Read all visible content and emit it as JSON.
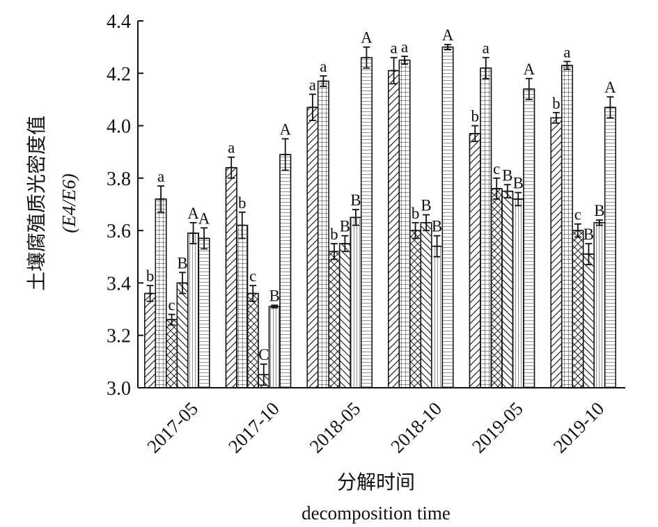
{
  "chart_data": {
    "type": "bar",
    "categories": [
      "2017-05",
      "2017-10",
      "2018-05",
      "2018-10",
      "2019-05",
      "2019-10"
    ],
    "ylim": [
      3.0,
      4.4
    ],
    "yticks": [
      "3.0",
      "3.2",
      "3.4",
      "3.6",
      "3.8",
      "4.0",
      "4.2",
      "4.4"
    ],
    "ylabel_cn": "土壤腐殖质光密度值",
    "ylabel_formula": "(E4/E6)",
    "xlabel_cn": "分解时间",
    "xlabel_en": "decomposition time",
    "grid": false,
    "series": [
      {
        "pattern": "diagonal",
        "values": [
          3.36,
          3.84,
          4.07,
          4.21,
          3.97,
          4.03
        ],
        "errors": [
          0.03,
          0.04,
          0.05,
          0.05,
          0.03,
          0.02
        ],
        "labels": [
          "b",
          "a",
          "a",
          "a",
          "b",
          "b"
        ]
      },
      {
        "pattern": "grid",
        "values": [
          3.72,
          3.62,
          4.17,
          4.25,
          4.22,
          4.23
        ],
        "errors": [
          0.05,
          0.05,
          0.02,
          0.015,
          0.04,
          0.015
        ],
        "labels": [
          "a",
          "b",
          "a",
          "a",
          "a",
          "a"
        ]
      },
      {
        "pattern": "crosshatch",
        "values": [
          3.26,
          3.36,
          3.52,
          3.6,
          3.76,
          3.6
        ],
        "errors": [
          0.02,
          0.03,
          0.03,
          0.03,
          0.04,
          0.025
        ],
        "labels": [
          "c",
          "c",
          "b",
          "b",
          "c",
          "c"
        ]
      },
      {
        "pattern": "anti-diagonal",
        "values": [
          3.4,
          3.05,
          3.55,
          3.63,
          3.75,
          3.51
        ],
        "errors": [
          0.04,
          0.04,
          0.03,
          0.03,
          0.025,
          0.04
        ],
        "labels": [
          "B",
          "C",
          "B",
          "B",
          "B",
          "B"
        ]
      },
      {
        "pattern": "vertical",
        "values": [
          3.59,
          3.31,
          3.65,
          3.54,
          3.72,
          3.63
        ],
        "errors": [
          0.04,
          0.005,
          0.03,
          0.04,
          0.025,
          0.01
        ],
        "labels": [
          "A",
          "B",
          "B",
          "B",
          "B",
          "B"
        ]
      },
      {
        "pattern": "horizontal",
        "values": [
          3.57,
          3.89,
          4.26,
          4.3,
          4.14,
          4.07
        ],
        "errors": [
          0.04,
          0.06,
          0.04,
          0.01,
          0.04,
          0.04
        ],
        "labels": [
          "A",
          "A",
          "A",
          "A",
          "A",
          "A"
        ]
      }
    ]
  }
}
